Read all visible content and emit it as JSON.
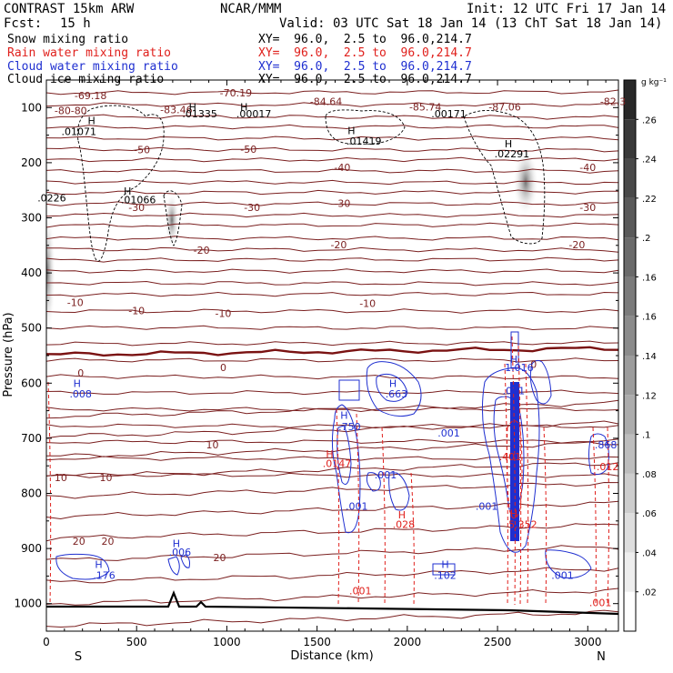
{
  "header": {
    "model": "CONTRAST 15km ARW",
    "center": "NCAR/MMM",
    "init": "Init: 12 UTC Fri 17 Jan 14",
    "fcst_label": "Fcst:",
    "fcst_value": "15 h",
    "valid": "Valid: 03 UTC Sat 18 Jan 14 (13 ChT Sat 18 Jan 14)"
  },
  "fields": [
    {
      "name": "Snow mixing ratio",
      "xy": "XY=  96.0,  2.5 to  96.0,214.7",
      "color": "#000000"
    },
    {
      "name": "Rain water mixing ratio",
      "xy": "XY=  96.0,  2.5 to  96.0,214.7",
      "color": "#e0201c"
    },
    {
      "name": "Cloud water mixing ratio",
      "xy": "XY=  96.0,  2.5 to  96.0,214.7",
      "color": "#1f2fd0"
    },
    {
      "name": "Cloud ice mixing ratio",
      "xy": "XY=  96.0,  2.5 to  96.0,214.7",
      "color": "#000000"
    }
  ],
  "chart_data": {
    "type": "heatmap",
    "xlabel": "Distance (km)",
    "ylabel": "Pressure (hPa)",
    "xlim": [
      0,
      3170
    ],
    "ylim": [
      1050,
      50
    ],
    "x_ticks": [
      0,
      500,
      1000,
      1500,
      2000,
      2500,
      3000
    ],
    "y_ticks": [
      100,
      200,
      300,
      400,
      500,
      600,
      700,
      800,
      900,
      1000
    ],
    "x_end_labels": {
      "left": "S",
      "right": "N"
    },
    "colorbar": {
      "unit": "g kg⁻¹",
      "ticks": [
        ".02",
        ".04",
        ".06",
        ".08",
        ".1",
        ".12",
        ".14",
        ".16",
        ".16",
        ".2",
        ".22",
        ".24",
        ".26"
      ]
    },
    "temperature_labels": [
      {
        "text": "-69.18",
        "x": 245,
        "p": 85
      },
      {
        "text": "-70.19",
        "x": 1050,
        "p": 80
      },
      {
        "text": "-84.64",
        "x": 1550,
        "p": 95
      },
      {
        "text": "-85.74",
        "x": 2100,
        "p": 105
      },
      {
        "text": "-87.06",
        "x": 2540,
        "p": 105
      },
      {
        "text": "-82.3",
        "x": 3140,
        "p": 95
      },
      {
        "text": "-80",
        "x": 90,
        "p": 112
      },
      {
        "text": "-80",
        "x": 180,
        "p": 112
      },
      {
        "text": "-83.46",
        "x": 720,
        "p": 110
      },
      {
        "text": "-50",
        "x": 530,
        "p": 183
      },
      {
        "text": "-50",
        "x": 1120,
        "p": 182
      },
      {
        "text": "-40",
        "x": 1640,
        "p": 215
      },
      {
        "text": "-40",
        "x": 3000,
        "p": 215
      },
      {
        "text": "-30",
        "x": 500,
        "p": 288
      },
      {
        "text": "-30",
        "x": 1140,
        "p": 288
      },
      {
        "text": "-30",
        "x": 1640,
        "p": 280
      },
      {
        "text": "-30",
        "x": 3000,
        "p": 288
      },
      {
        "text": "-20",
        "x": 860,
        "p": 365
      },
      {
        "text": "-20",
        "x": 1620,
        "p": 355
      },
      {
        "text": "-20",
        "x": 2940,
        "p": 355
      },
      {
        "text": "-10",
        "x": 160,
        "p": 460
      },
      {
        "text": "-10",
        "x": 500,
        "p": 475
      },
      {
        "text": "-10",
        "x": 980,
        "p": 480
      },
      {
        "text": "-10",
        "x": 1780,
        "p": 462
      },
      {
        "text": "0",
        "x": 190,
        "p": 588
      },
      {
        "text": "0",
        "x": 980,
        "p": 578
      },
      {
        "text": "0",
        "x": 2700,
        "p": 572
      },
      {
        "text": "10",
        "x": 920,
        "p": 718
      },
      {
        "text": "10",
        "x": 80,
        "p": 778
      },
      {
        "text": "10",
        "x": 330,
        "p": 778
      },
      {
        "text": "20",
        "x": 180,
        "p": 893
      },
      {
        "text": "20",
        "x": 340,
        "p": 893
      },
      {
        "text": "20",
        "x": 960,
        "p": 923
      }
    ],
    "snow_ice_maxima": [
      {
        "text": "H",
        "x": 250,
        "p": 130
      },
      {
        "text": ".01071",
        "x": 180,
        "p": 150
      },
      {
        "text": "H",
        "x": 810,
        "p": 105
      },
      {
        "text": ".01335",
        "x": 850,
        "p": 118
      },
      {
        "text": "H",
        "x": 1095,
        "p": 105
      },
      {
        "text": ".00017",
        "x": 1150,
        "p": 118
      },
      {
        "text": "H",
        "x": 1690,
        "p": 148
      },
      {
        "text": ".01419",
        "x": 1760,
        "p": 167
      },
      {
        "text": ".00171",
        "x": 2230,
        "p": 118
      },
      {
        "text": "H",
        "x": 2560,
        "p": 172
      },
      {
        "text": ".02291",
        "x": 2580,
        "p": 190
      },
      {
        "text": "H",
        "x": 450,
        "p": 258
      },
      {
        "text": ".01066",
        "x": 510,
        "p": 274
      },
      {
        "text": ".0226",
        "x": 30,
        "p": 270
      }
    ],
    "cloud_water_maxima": [
      {
        "text": "H",
        "x": 170,
        "p": 607
      },
      {
        "text": ".008",
        "x": 190,
        "p": 626
      },
      {
        "text": "H",
        "x": 1920,
        "p": 607
      },
      {
        "text": ".663",
        "x": 1940,
        "p": 626
      },
      {
        "text": "H",
        "x": 1650,
        "p": 665
      },
      {
        "text": ".750",
        "x": 1680,
        "p": 685
      },
      {
        "text": ".001",
        "x": 2230,
        "p": 697
      },
      {
        "text": ".001",
        "x": 1880,
        "p": 773
      },
      {
        "text": ".001",
        "x": 1720,
        "p": 830
      },
      {
        "text": ".001",
        "x": 2440,
        "p": 830
      },
      {
        "text": ".001",
        "x": 2590,
        "p": 620
      },
      {
        "text": "H",
        "x": 2590,
        "p": 563
      },
      {
        "text": "1.016",
        "x": 2620,
        "p": 578
      },
      {
        "text": ".868",
        "x": 3100,
        "p": 718
      },
      {
        "text": "H",
        "x": 720,
        "p": 897
      },
      {
        "text": ".006",
        "x": 740,
        "p": 913
      },
      {
        "text": "H",
        "x": 290,
        "p": 935
      },
      {
        "text": ".176",
        "x": 320,
        "p": 955
      },
      {
        "text": "H",
        "x": 2210,
        "p": 935
      },
      {
        "text": ".102",
        "x": 2210,
        "p": 955
      },
      {
        "text": ".001",
        "x": 2860,
        "p": 955
      }
    ],
    "rain_maxima": [
      {
        "text": "H",
        "x": 1570,
        "p": 735
      },
      {
        "text": ".0147",
        "x": 1610,
        "p": 752
      },
      {
        "text": "H",
        "x": 1970,
        "p": 845
      },
      {
        "text": ".028",
        "x": 1980,
        "p": 863
      },
      {
        "text": "H",
        "x": 2590,
        "p": 843
      },
      {
        "text": "5.352",
        "x": 2640,
        "p": 863
      },
      {
        "text": ".401",
        "x": 2570,
        "p": 740
      },
      {
        "text": ".001",
        "x": 1740,
        "p": 983
      },
      {
        "text": ".001",
        "x": 3070,
        "p": 1005
      },
      {
        "text": ".012",
        "x": 3110,
        "p": 758
      }
    ]
  }
}
